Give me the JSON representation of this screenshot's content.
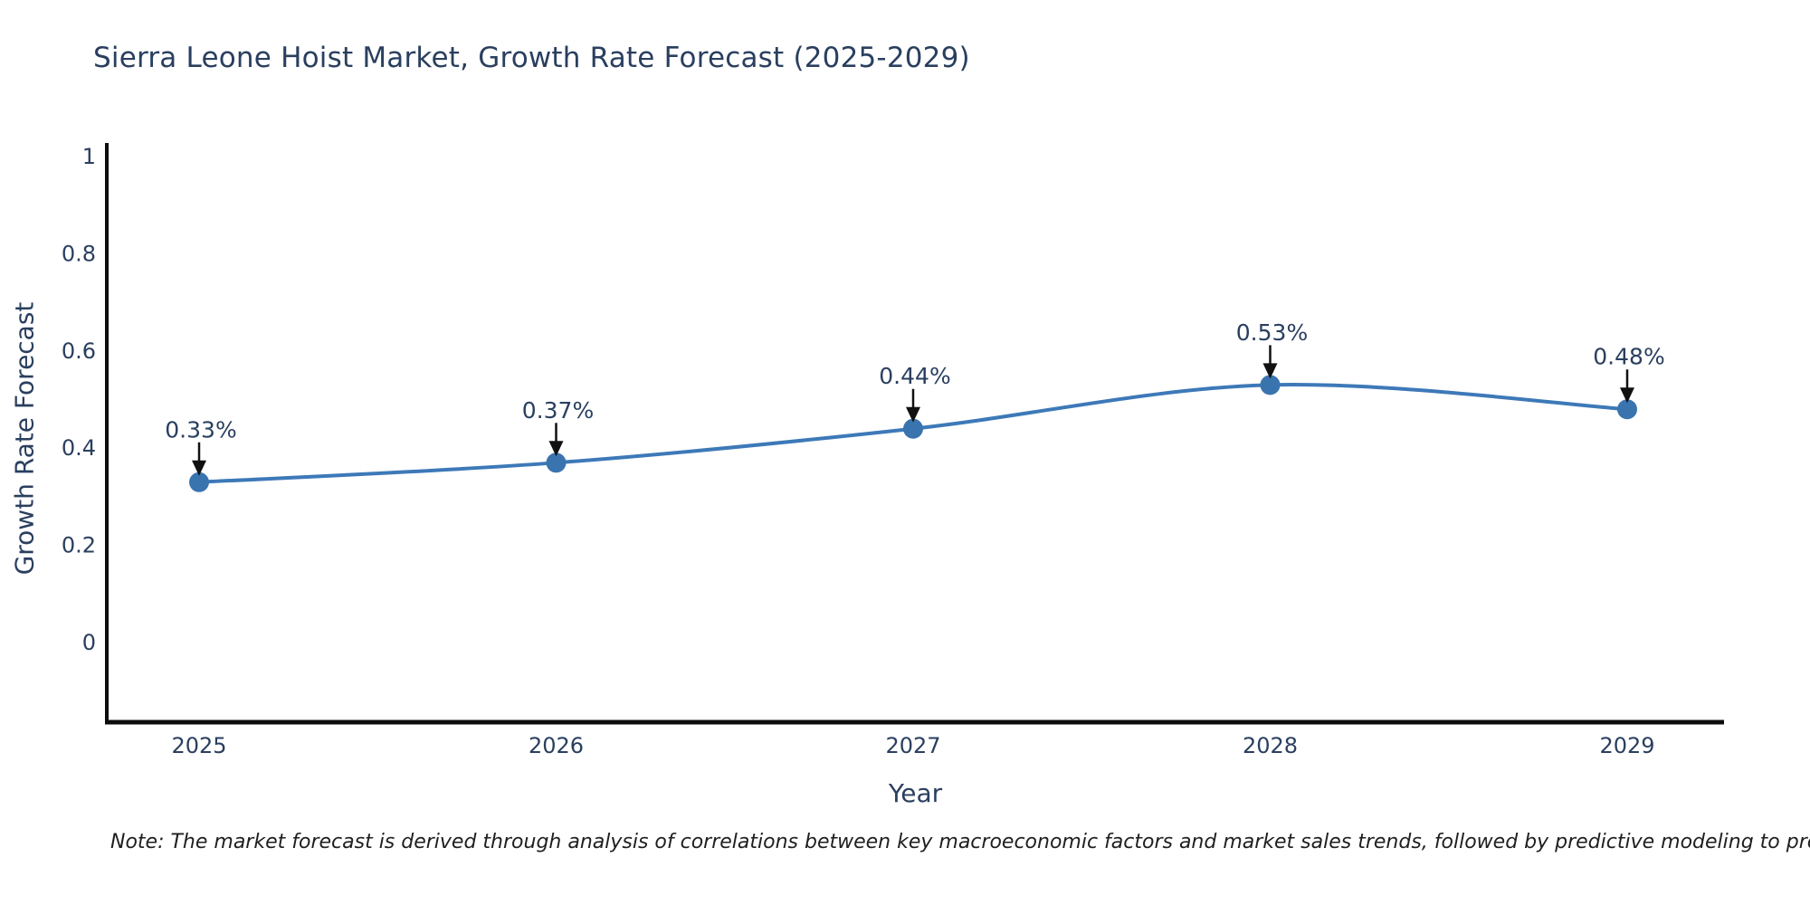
{
  "title": "Sierra Leone Hoist Market, Growth Rate Forecast (2025-2029)",
  "note": "Note: The market forecast is derived through analysis of correlations between key macroeconomic factors and market sales trends, followed by predictive modeling to project future sales",
  "chart_data": {
    "type": "line",
    "title": "Sierra Leone Hoist Market, Growth Rate Forecast (2025-2029)",
    "xlabel": "Year",
    "ylabel": "Growth Rate Forecast",
    "x": [
      2025,
      2026,
      2027,
      2028,
      2029
    ],
    "series": [
      {
        "name": "Growth Rate Forecast",
        "values": [
          0.33,
          0.37,
          0.44,
          0.53,
          0.48
        ],
        "point_labels": [
          "0.33%",
          "0.37%",
          "0.44%",
          "0.53%",
          "0.48%"
        ]
      }
    ],
    "xticks": [
      "2025",
      "2026",
      "2027",
      "2028",
      "2029"
    ],
    "yticks": [
      0,
      0.2,
      0.4,
      0.6,
      0.8,
      1
    ],
    "ytick_labels": [
      "0",
      "0.2",
      "0.4",
      "0.6",
      "0.8",
      "1"
    ],
    "ylim": [
      -0.18,
      1.03
    ],
    "grid": false,
    "legend_position": "none",
    "line_shape": "spline",
    "annotations_have_arrows": true
  },
  "colors": {
    "line": "#3d79b8",
    "marker": "#3a74af",
    "arrow": "#111111",
    "text": "#2a3f5f",
    "axis": "#0d0d0d",
    "note_text": "#1f1f1f",
    "background": "#ffffff"
  }
}
